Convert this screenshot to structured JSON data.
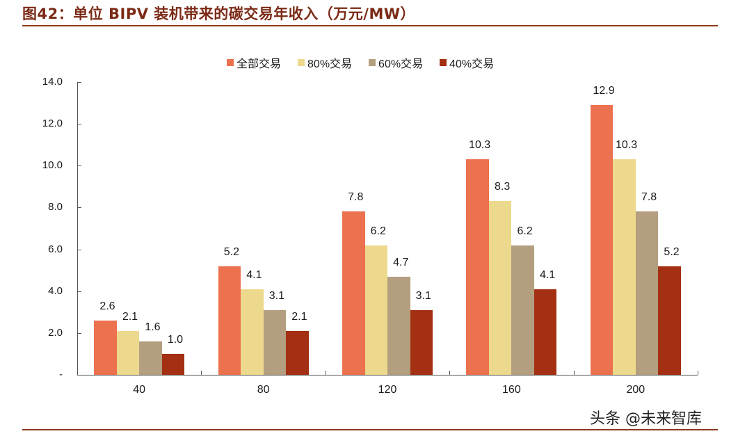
{
  "title": "图42：单位 BIPV 装机带来的碳交易年收入（万元/MW）",
  "watermark": "头条 @未来智库",
  "legend": [
    {
      "label": "全部交易",
      "color": "#ec714e"
    },
    {
      "label": "80%交易",
      "color": "#edd98d"
    },
    {
      "label": "60%交易",
      "color": "#b39e7f"
    },
    {
      "label": "40%交易",
      "color": "#a33012"
    }
  ],
  "y_ticks": [
    "-",
    "2.0",
    "4.0",
    "6.0",
    "8.0",
    "10.0",
    "12.0",
    "14.0"
  ],
  "chart_data": {
    "type": "bar",
    "title": "图42：单位 BIPV 装机带来的碳交易年收入（万元/MW）",
    "xlabel": "",
    "ylabel": "",
    "categories": [
      "40",
      "80",
      "120",
      "160",
      "200"
    ],
    "series": [
      {
        "name": "全部交易",
        "color": "#ec714e",
        "values": [
          2.6,
          5.2,
          7.8,
          10.3,
          12.9
        ]
      },
      {
        "name": "80%交易",
        "color": "#edd98d",
        "values": [
          2.1,
          4.1,
          6.2,
          8.3,
          10.3
        ]
      },
      {
        "name": "60%交易",
        "color": "#b39e7f",
        "values": [
          1.6,
          3.1,
          4.7,
          6.2,
          7.8
        ]
      },
      {
        "name": "40%交易",
        "color": "#a33012",
        "values": [
          1.0,
          2.1,
          3.1,
          4.1,
          5.2
        ]
      }
    ],
    "ylim": [
      0,
      14
    ],
    "y_tick_step": 2,
    "grid": false,
    "legend_position": "top",
    "data_labels": true
  }
}
